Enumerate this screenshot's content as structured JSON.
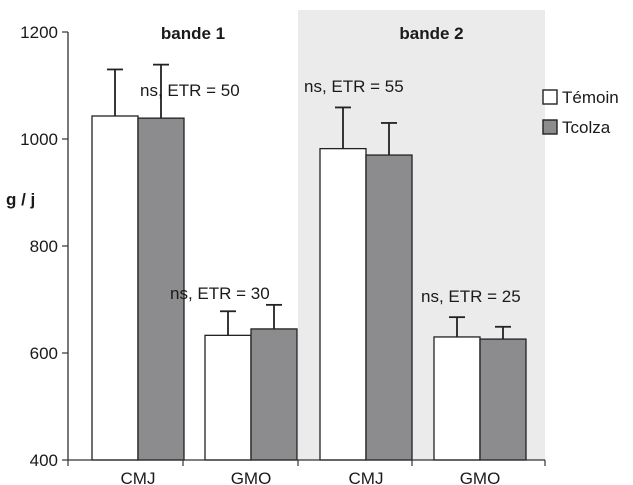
{
  "chart_data": {
    "type": "bar",
    "ylabel": "g / j",
    "xlabel": "",
    "ylim": [
      400,
      1200
    ],
    "yticks": [
      400,
      600,
      800,
      1000,
      1200
    ],
    "legend_placement": "right",
    "grid": false,
    "panels": [
      {
        "title": "bande 1",
        "shaded": false,
        "categories": [
          "CMJ",
          "GMO"
        ],
        "annotations": [
          "ns, ETR = 50",
          "ns, ETR = 30"
        ]
      },
      {
        "title": "bande 2",
        "shaded": true,
        "categories": [
          "CMJ",
          "GMO"
        ],
        "annotations": [
          "ns, ETR = 55",
          "ns, ETR = 25"
        ]
      }
    ],
    "series": [
      {
        "name": "Témoin",
        "color": "#ffffff",
        "values": [
          1043,
          633,
          982,
          630
        ],
        "errors": [
          87,
          45,
          77,
          37
        ]
      },
      {
        "name": "Tcolza",
        "color": "#8c8c8e",
        "values": [
          1039,
          645,
          970,
          626
        ],
        "errors": [
          100,
          45,
          60,
          23
        ]
      }
    ]
  }
}
